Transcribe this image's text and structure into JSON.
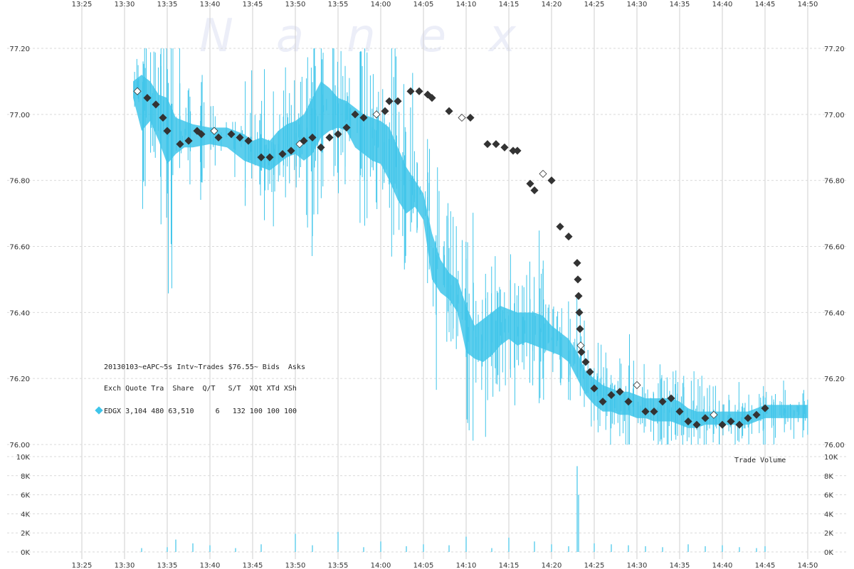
{
  "watermark": "Nanex",
  "legend": {
    "line1": "20130103~eAPC~5s Intv~Trades $76.55~ Bids  Asks",
    "line2": "Exch Quote Tra  Share  Q/T   S/T  XQt XTd XSh",
    "row": {
      "exchange": "EDGX",
      "quotes": "3,104",
      "trades": "480",
      "shares": "63,510",
      "qt": "6",
      "st": "132",
      "xqt": "100",
      "xtd": "100",
      "xsh": "100"
    }
  },
  "volume_title": "Trade Volume",
  "colors": {
    "quote": "#3fc5ea",
    "trade": "#333333",
    "grid": "#d9d9d9"
  },
  "chart_data": [
    {
      "type": "line",
      "title": "",
      "x_ticks": [
        "13:25",
        "13:30",
        "13:35",
        "13:40",
        "13:45",
        "13:50",
        "13:55",
        "14:00",
        "14:05",
        "14:10",
        "14:15",
        "14:20",
        "14:25",
        "14:30",
        "14:35",
        "14:40",
        "14:45",
        "14:50"
      ],
      "y_ticks": [
        "77.20",
        "77.00",
        "76.80",
        "76.60",
        "76.40",
        "76.20",
        "76.00"
      ],
      "ylim": [
        76.0,
        77.2
      ],
      "grid": true,
      "series": [
        {
          "kind": "quote-band",
          "points": [
            [
              "13:31",
              77.05,
              77.1
            ],
            [
              "13:32",
              76.95,
              77.12
            ],
            [
              "13:33",
              76.98,
              77.1
            ],
            [
              "13:34",
              76.92,
              77.06
            ],
            [
              "13:35",
              76.85,
              77.05
            ],
            [
              "13:36",
              76.88,
              76.99
            ],
            [
              "13:37",
              76.9,
              76.98
            ],
            [
              "13:38",
              76.9,
              76.97
            ],
            [
              "13:40",
              76.91,
              76.96
            ],
            [
              "13:42",
              76.9,
              76.96
            ],
            [
              "13:44",
              76.86,
              76.94
            ],
            [
              "13:45",
              76.85,
              76.92
            ],
            [
              "13:46",
              76.84,
              76.93
            ],
            [
              "13:47",
              76.83,
              76.92
            ],
            [
              "13:48",
              76.85,
              76.95
            ],
            [
              "13:49",
              76.87,
              76.97
            ],
            [
              "13:50",
              76.88,
              76.98
            ],
            [
              "13:51",
              76.86,
              77.0
            ],
            [
              "13:52",
              76.88,
              77.05
            ],
            [
              "13:53",
              76.93,
              77.1
            ],
            [
              "13:54",
              76.95,
              77.08
            ],
            [
              "13:55",
              76.96,
              77.05
            ],
            [
              "13:56",
              76.95,
              77.04
            ],
            [
              "13:57",
              76.9,
              77.02
            ],
            [
              "13:58",
              76.88,
              77.0
            ],
            [
              "13:59",
              76.86,
              76.99
            ],
            [
              "14:00",
              76.85,
              76.98
            ],
            [
              "14:01",
              76.8,
              76.96
            ],
            [
              "14:02",
              76.74,
              76.9
            ],
            [
              "14:03",
              76.7,
              76.84
            ],
            [
              "14:04",
              76.72,
              76.8
            ],
            [
              "14:05",
              76.68,
              76.76
            ],
            [
              "14:06",
              76.5,
              76.64
            ],
            [
              "14:07",
              76.46,
              76.56
            ],
            [
              "14:08",
              76.44,
              76.52
            ],
            [
              "14:09",
              76.4,
              76.5
            ],
            [
              "14:10",
              76.28,
              76.42
            ],
            [
              "14:11",
              76.26,
              76.36
            ],
            [
              "14:12",
              76.25,
              76.38
            ],
            [
              "14:13",
              76.27,
              76.4
            ],
            [
              "14:14",
              76.3,
              76.42
            ],
            [
              "14:15",
              76.32,
              76.41
            ],
            [
              "14:16",
              76.3,
              76.4
            ],
            [
              "14:17",
              76.31,
              76.4
            ],
            [
              "14:18",
              76.3,
              76.4
            ],
            [
              "14:19",
              76.29,
              76.39
            ],
            [
              "14:20",
              76.28,
              76.36
            ],
            [
              "14:21",
              76.27,
              76.34
            ],
            [
              "14:22",
              76.25,
              76.32
            ],
            [
              "14:23",
              76.2,
              76.28
            ],
            [
              "14:24",
              76.15,
              76.22
            ],
            [
              "14:25",
              76.12,
              76.2
            ],
            [
              "14:26",
              76.1,
              76.18
            ],
            [
              "14:27",
              76.1,
              76.17
            ],
            [
              "14:28",
              76.09,
              76.16
            ],
            [
              "14:29",
              76.09,
              76.16
            ],
            [
              "14:30",
              76.08,
              76.15
            ],
            [
              "14:31",
              76.08,
              76.14
            ],
            [
              "14:32",
              76.07,
              76.14
            ],
            [
              "14:33",
              76.07,
              76.14
            ],
            [
              "14:34",
              76.07,
              76.14
            ],
            [
              "14:35",
              76.06,
              76.13
            ],
            [
              "14:36",
              76.05,
              76.11
            ],
            [
              "14:37",
              76.05,
              76.1
            ],
            [
              "14:38",
              76.06,
              76.1
            ],
            [
              "14:39",
              76.06,
              76.1
            ],
            [
              "14:40",
              76.06,
              76.1
            ],
            [
              "14:41",
              76.06,
              76.1
            ],
            [
              "14:42",
              76.06,
              76.1
            ],
            [
              "14:43",
              76.06,
              76.1
            ],
            [
              "14:44",
              76.07,
              76.11
            ],
            [
              "14:45",
              76.08,
              76.12
            ],
            [
              "14:46",
              76.08,
              76.12
            ],
            [
              "14:47",
              76.08,
              76.12
            ],
            [
              "14:48",
              76.08,
              76.12
            ],
            [
              "14:49",
              76.08,
              76.12
            ],
            [
              "14:50",
              76.08,
              76.12
            ]
          ]
        },
        {
          "kind": "trades",
          "points": [
            [
              "13:31:30",
              77.07
            ],
            [
              "13:32:40",
              77.05
            ],
            [
              "13:33:40",
              77.03
            ],
            [
              "13:34:30",
              76.99
            ],
            [
              "13:35:00",
              76.95
            ],
            [
              "13:36:30",
              76.91
            ],
            [
              "13:37:30",
              76.92
            ],
            [
              "13:38:30",
              76.95
            ],
            [
              "13:39:00",
              76.94
            ],
            [
              "13:40:30",
              76.95
            ],
            [
              "13:41:00",
              76.93
            ],
            [
              "13:42:30",
              76.94
            ],
            [
              "13:43:30",
              76.93
            ],
            [
              "13:44:30",
              76.92
            ],
            [
              "13:46:00",
              76.87
            ],
            [
              "13:47:00",
              76.87
            ],
            [
              "13:48:30",
              76.88
            ],
            [
              "13:49:30",
              76.89
            ],
            [
              "13:50:30",
              76.91
            ],
            [
              "13:51:00",
              76.92
            ],
            [
              "13:52:00",
              76.93
            ],
            [
              "13:53:00",
              76.9
            ],
            [
              "13:54:00",
              76.93
            ],
            [
              "13:55:00",
              76.94
            ],
            [
              "13:56:00",
              76.96
            ],
            [
              "13:57:00",
              77.0
            ],
            [
              "13:58:00",
              76.99
            ],
            [
              "13:59:30",
              77.0
            ],
            [
              "14:00:30",
              77.01
            ],
            [
              "14:01:00",
              77.04
            ],
            [
              "14:02:00",
              77.04
            ],
            [
              "14:03:30",
              77.07
            ],
            [
              "14:04:30",
              77.07
            ],
            [
              "14:05:30",
              77.06
            ],
            [
              "14:06:00",
              77.05
            ],
            [
              "14:08:00",
              77.01
            ],
            [
              "14:09:30",
              76.99
            ],
            [
              "14:10:30",
              76.99
            ],
            [
              "14:12:30",
              76.91
            ],
            [
              "14:13:30",
              76.91
            ],
            [
              "14:14:30",
              76.9
            ],
            [
              "14:15:30",
              76.89
            ],
            [
              "14:16:00",
              76.89
            ],
            [
              "14:17:30",
              76.79
            ],
            [
              "14:18:00",
              76.77
            ],
            [
              "14:19:00",
              76.82
            ],
            [
              "14:20:00",
              76.8
            ],
            [
              "14:21:00",
              76.66
            ],
            [
              "14:22:00",
              76.63
            ],
            [
              "14:23:00",
              76.55
            ],
            [
              "14:23:05",
              76.5
            ],
            [
              "14:23:10",
              76.45
            ],
            [
              "14:23:15",
              76.4
            ],
            [
              "14:23:20",
              76.35
            ],
            [
              "14:23:25",
              76.3
            ],
            [
              "14:23:30",
              76.28
            ],
            [
              "14:24:00",
              76.25
            ],
            [
              "14:24:30",
              76.22
            ],
            [
              "14:25:00",
              76.17
            ],
            [
              "14:26:00",
              76.13
            ],
            [
              "14:27:00",
              76.15
            ],
            [
              "14:28:00",
              76.16
            ],
            [
              "14:29:00",
              76.13
            ],
            [
              "14:30:00",
              76.18
            ],
            [
              "14:31:00",
              76.1
            ],
            [
              "14:32:00",
              76.1
            ],
            [
              "14:33:00",
              76.13
            ],
            [
              "14:34:00",
              76.14
            ],
            [
              "14:35:00",
              76.1
            ],
            [
              "14:36:00",
              76.07
            ],
            [
              "14:37:00",
              76.06
            ],
            [
              "14:38:00",
              76.08
            ],
            [
              "14:39:00",
              76.09
            ],
            [
              "14:40:00",
              76.06
            ],
            [
              "14:41:00",
              76.07
            ],
            [
              "14:42:00",
              76.06
            ],
            [
              "14:43:00",
              76.08
            ],
            [
              "14:44:00",
              76.09
            ],
            [
              "14:45:00",
              76.11
            ]
          ]
        }
      ]
    },
    {
      "type": "bar",
      "title": "Trade Volume",
      "y_ticks": [
        "10K",
        "8K",
        "6K",
        "4K",
        "2K",
        "0K"
      ],
      "ylim": [
        0,
        10000
      ],
      "x": [
        "13:32",
        "13:35",
        "13:36",
        "13:38",
        "13:40",
        "13:43",
        "13:46",
        "13:50",
        "13:52",
        "13:55",
        "13:58",
        "14:00",
        "14:03",
        "14:05",
        "14:08",
        "14:10",
        "14:13",
        "14:15",
        "14:18",
        "14:20",
        "14:22",
        "14:23",
        "14:23:10",
        "14:25",
        "14:27",
        "14:29",
        "14:31",
        "14:33",
        "14:36",
        "14:38",
        "14:40",
        "14:42",
        "14:44",
        "14:45"
      ],
      "values": [
        400,
        500,
        1300,
        900,
        700,
        400,
        800,
        1900,
        700,
        2100,
        500,
        1100,
        600,
        800,
        700,
        1600,
        400,
        1500,
        1100,
        800,
        600,
        9000,
        6000,
        900,
        800,
        700,
        600,
        500,
        800,
        600,
        700,
        500,
        400,
        600
      ]
    }
  ]
}
